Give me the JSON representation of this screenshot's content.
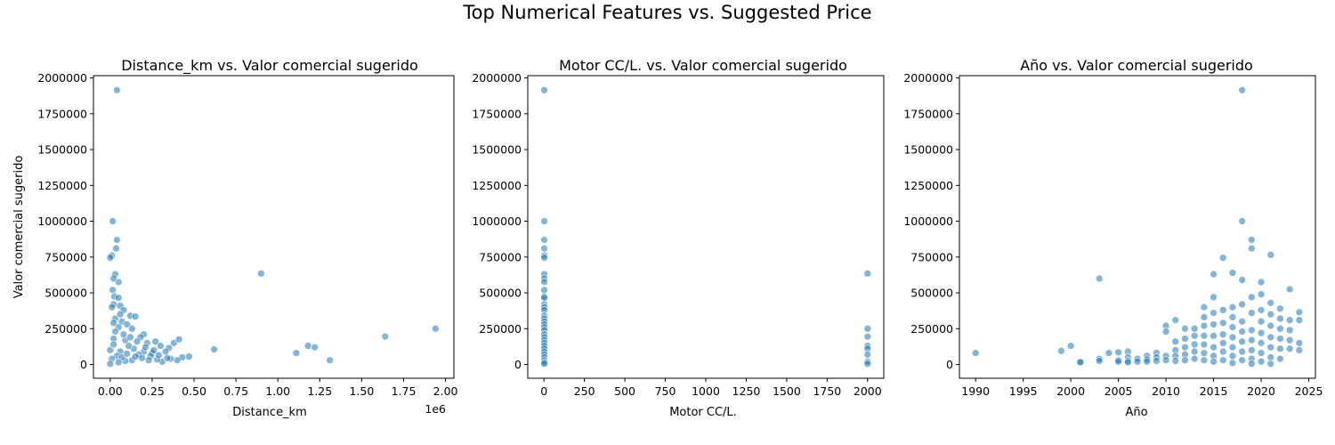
{
  "figure": {
    "title": "Top Numerical Features vs. Suggested Price"
  },
  "colors": {
    "marker": "#1f77b4",
    "marker_edge": "#ffffff"
  },
  "chart_data": [
    {
      "type": "scatter",
      "title": "Distance_km vs. Valor comercial sugerido",
      "xlabel": "Distance_km",
      "ylabel": "Valor comercial sugerido",
      "x_offset_text": "1e6",
      "xlim": [
        -0.1,
        2.05
      ],
      "ylim": [
        -96000,
        2016000
      ],
      "xticks": [
        0.0,
        0.25,
        0.5,
        0.75,
        1.0,
        1.25,
        1.5,
        1.75,
        2.0
      ],
      "xtick_labels": [
        "0.00",
        "0.25",
        "0.50",
        "0.75",
        "1.00",
        "1.25",
        "1.50",
        "1.75",
        "2.00"
      ],
      "yticks": [
        0,
        250000,
        500000,
        750000,
        1000000,
        1250000,
        1500000,
        1750000,
        2000000
      ],
      "ytick_labels": [
        "0",
        "250000",
        "500000",
        "750000",
        "1000000",
        "1250000",
        "1500000",
        "1750000",
        "2000000"
      ],
      "grid": false,
      "points": [
        [
          0.04,
          1915000
        ],
        [
          0.015,
          1000000
        ],
        [
          0.04,
          870000
        ],
        [
          0.035,
          810000
        ],
        [
          0.01,
          760000
        ],
        [
          0.0,
          745000
        ],
        [
          0.05,
          575000
        ],
        [
          0.03,
          630000
        ],
        [
          0.02,
          600000
        ],
        [
          0.015,
          520000
        ],
        [
          0.025,
          475000
        ],
        [
          0.05,
          465000
        ],
        [
          0.02,
          420000
        ],
        [
          0.06,
          410000
        ],
        [
          0.01,
          400000
        ],
        [
          0.08,
          380000
        ],
        [
          0.12,
          340000
        ],
        [
          0.15,
          335000
        ],
        [
          0.03,
          320000
        ],
        [
          0.07,
          300000
        ],
        [
          0.1,
          280000
        ],
        [
          0.05,
          260000
        ],
        [
          0.13,
          250000
        ],
        [
          0.2,
          210000
        ],
        [
          0.18,
          190000
        ],
        [
          0.02,
          180000
        ],
        [
          0.09,
          170000
        ],
        [
          0.16,
          160000
        ],
        [
          0.22,
          150000
        ],
        [
          0.27,
          160000
        ],
        [
          0.3,
          130000
        ],
        [
          0.35,
          115000
        ],
        [
          0.38,
          150000
        ],
        [
          0.41,
          175000
        ],
        [
          0.33,
          90000
        ],
        [
          0.25,
          80000
        ],
        [
          0.43,
          50000
        ],
        [
          0.47,
          55000
        ],
        [
          0.4,
          30000
        ],
        [
          0.36,
          40000
        ],
        [
          0.31,
          20000
        ],
        [
          0.28,
          35000
        ],
        [
          0.24,
          60000
        ],
        [
          0.2,
          90000
        ],
        [
          0.14,
          110000
        ],
        [
          0.11,
          130000
        ],
        [
          0.06,
          90000
        ],
        [
          0.04,
          60000
        ],
        [
          0.01,
          40000
        ],
        [
          0.0,
          100000
        ],
        [
          0.02,
          140000
        ],
        [
          0.08,
          210000
        ],
        [
          0.17,
          70000
        ],
        [
          0.19,
          45000
        ],
        [
          0.13,
          30000
        ],
        [
          0.09,
          25000
        ],
        [
          0.07,
          50000
        ],
        [
          0.05,
          15000
        ],
        [
          0.0,
          5000
        ],
        [
          0.03,
          230000
        ],
        [
          0.06,
          350000
        ],
        [
          0.02,
          290000
        ],
        [
          0.12,
          190000
        ],
        [
          0.26,
          100000
        ],
        [
          0.21,
          120000
        ],
        [
          0.15,
          55000
        ],
        [
          0.1,
          75000
        ],
        [
          0.23,
          30000
        ],
        [
          0.29,
          65000
        ],
        [
          0.34,
          45000
        ],
        [
          0.62,
          105000
        ],
        [
          0.9,
          635000
        ],
        [
          1.11,
          80000
        ],
        [
          1.18,
          130000
        ],
        [
          1.22,
          120000
        ],
        [
          1.31,
          30000
        ],
        [
          1.64,
          195000
        ],
        [
          1.94,
          250000
        ]
      ]
    },
    {
      "type": "scatter",
      "title": "Motor CC/L. vs. Valor comercial sugerido",
      "xlabel": "Motor CC/L.",
      "ylabel": "",
      "xlim": [
        -100,
        2100
      ],
      "ylim": [
        -96000,
        2016000
      ],
      "xticks": [
        0,
        250,
        500,
        750,
        1000,
        1250,
        1500,
        1750,
        2000
      ],
      "xtick_labels": [
        "0",
        "250",
        "500",
        "750",
        "1000",
        "1250",
        "1500",
        "1750",
        "2000"
      ],
      "yticks": [
        0,
        250000,
        500000,
        750000,
        1000000,
        1250000,
        1500000,
        1750000,
        2000000
      ],
      "ytick_labels": [
        "0",
        "250000",
        "500000",
        "750000",
        "1000000",
        "1250000",
        "1500000",
        "1750000",
        "2000000"
      ],
      "grid": false,
      "points": [
        [
          2,
          1915000
        ],
        [
          2,
          1000000
        ],
        [
          2,
          870000
        ],
        [
          2,
          810000
        ],
        [
          2,
          760000
        ],
        [
          2,
          745000
        ],
        [
          2,
          630000
        ],
        [
          2,
          600000
        ],
        [
          2,
          575000
        ],
        [
          2,
          520000
        ],
        [
          2,
          475000
        ],
        [
          2,
          465000
        ],
        [
          2,
          420000
        ],
        [
          2,
          400000
        ],
        [
          2,
          380000
        ],
        [
          2,
          340000
        ],
        [
          2,
          320000
        ],
        [
          2,
          300000
        ],
        [
          2,
          280000
        ],
        [
          2,
          260000
        ],
        [
          2,
          240000
        ],
        [
          2,
          210000
        ],
        [
          2,
          190000
        ],
        [
          2,
          170000
        ],
        [
          2,
          150000
        ],
        [
          2,
          130000
        ],
        [
          2,
          110000
        ],
        [
          2,
          90000
        ],
        [
          2,
          70000
        ],
        [
          2,
          50000
        ],
        [
          2,
          30000
        ],
        [
          2,
          15000
        ],
        [
          2,
          5000
        ],
        [
          2000,
          635000
        ],
        [
          2000,
          250000
        ],
        [
          2000,
          195000
        ],
        [
          2000,
          130000
        ],
        [
          2000,
          110000
        ],
        [
          2000,
          70000
        ],
        [
          2000,
          20000
        ],
        [
          2000,
          5000
        ]
      ]
    },
    {
      "type": "scatter",
      "title": "Año vs. Valor comercial sugerido",
      "xlabel": "Año",
      "ylabel": "",
      "xlim": [
        1988.3,
        2025.7
      ],
      "ylim": [
        -96000,
        2016000
      ],
      "xticks": [
        1990,
        1995,
        2000,
        2005,
        2010,
        2015,
        2020,
        2025
      ],
      "xtick_labels": [
        "1990",
        "1995",
        "2000",
        "2005",
        "2010",
        "2015",
        "2020",
        "2025"
      ],
      "yticks": [
        0,
        250000,
        500000,
        750000,
        1000000,
        1250000,
        1500000,
        1750000,
        2000000
      ],
      "ytick_labels": [
        "0",
        "250000",
        "500000",
        "750000",
        "1000000",
        "1250000",
        "1500000",
        "1750000",
        "2000000"
      ],
      "grid": false,
      "points": [
        [
          1990,
          80000
        ],
        [
          1999,
          95000
        ],
        [
          2000,
          130000
        ],
        [
          2001,
          20000
        ],
        [
          2001,
          15000
        ],
        [
          2003,
          600000
        ],
        [
          2003,
          40000
        ],
        [
          2003,
          25000
        ],
        [
          2004,
          80000
        ],
        [
          2005,
          85000
        ],
        [
          2005,
          30000
        ],
        [
          2005,
          20000
        ],
        [
          2006,
          90000
        ],
        [
          2006,
          50000
        ],
        [
          2006,
          25000
        ],
        [
          2006,
          15000
        ],
        [
          2007,
          40000
        ],
        [
          2007,
          20000
        ],
        [
          2008,
          60000
        ],
        [
          2008,
          35000
        ],
        [
          2008,
          20000
        ],
        [
          2009,
          80000
        ],
        [
          2009,
          50000
        ],
        [
          2009,
          25000
        ],
        [
          2010,
          270000
        ],
        [
          2010,
          230000
        ],
        [
          2010,
          60000
        ],
        [
          2010,
          30000
        ],
        [
          2011,
          310000
        ],
        [
          2011,
          160000
        ],
        [
          2011,
          100000
        ],
        [
          2011,
          60000
        ],
        [
          2011,
          25000
        ],
        [
          2012,
          250000
        ],
        [
          2012,
          180000
        ],
        [
          2012,
          120000
        ],
        [
          2012,
          70000
        ],
        [
          2012,
          30000
        ],
        [
          2013,
          250000
        ],
        [
          2013,
          200000
        ],
        [
          2013,
          140000
        ],
        [
          2013,
          90000
        ],
        [
          2013,
          40000
        ],
        [
          2014,
          400000
        ],
        [
          2014,
          330000
        ],
        [
          2014,
          270000
        ],
        [
          2014,
          200000
        ],
        [
          2014,
          140000
        ],
        [
          2014,
          80000
        ],
        [
          2014,
          30000
        ],
        [
          2015,
          630000
        ],
        [
          2015,
          470000
        ],
        [
          2015,
          360000
        ],
        [
          2015,
          280000
        ],
        [
          2015,
          200000
        ],
        [
          2015,
          120000
        ],
        [
          2015,
          60000
        ],
        [
          2015,
          20000
        ],
        [
          2016,
          745000
        ],
        [
          2016,
          380000
        ],
        [
          2016,
          290000
        ],
        [
          2016,
          210000
        ],
        [
          2016,
          150000
        ],
        [
          2016,
          90000
        ],
        [
          2016,
          30000
        ],
        [
          2017,
          640000
        ],
        [
          2017,
          400000
        ],
        [
          2017,
          330000
        ],
        [
          2017,
          260000
        ],
        [
          2017,
          190000
        ],
        [
          2017,
          120000
        ],
        [
          2017,
          60000
        ],
        [
          2017,
          10000
        ],
        [
          2018,
          1915000
        ],
        [
          2018,
          1000000
        ],
        [
          2018,
          590000
        ],
        [
          2018,
          420000
        ],
        [
          2018,
          300000
        ],
        [
          2018,
          230000
        ],
        [
          2018,
          160000
        ],
        [
          2018,
          90000
        ],
        [
          2018,
          30000
        ],
        [
          2019,
          870000
        ],
        [
          2019,
          810000
        ],
        [
          2019,
          470000
        ],
        [
          2019,
          360000
        ],
        [
          2019,
          240000
        ],
        [
          2019,
          170000
        ],
        [
          2019,
          100000
        ],
        [
          2019,
          40000
        ],
        [
          2019,
          5000
        ],
        [
          2020,
          575000
        ],
        [
          2020,
          490000
        ],
        [
          2020,
          380000
        ],
        [
          2020,
          300000
        ],
        [
          2020,
          220000
        ],
        [
          2020,
          150000
        ],
        [
          2020,
          80000
        ],
        [
          2020,
          20000
        ],
        [
          2021,
          765000
        ],
        [
          2021,
          430000
        ],
        [
          2021,
          350000
        ],
        [
          2021,
          270000
        ],
        [
          2021,
          190000
        ],
        [
          2021,
          120000
        ],
        [
          2021,
          50000
        ],
        [
          2021,
          5000
        ],
        [
          2022,
          390000
        ],
        [
          2022,
          320000
        ],
        [
          2022,
          250000
        ],
        [
          2022,
          180000
        ],
        [
          2022,
          110000
        ],
        [
          2022,
          40000
        ],
        [
          2023,
          525000
        ],
        [
          2023,
          310000
        ],
        [
          2023,
          240000
        ],
        [
          2023,
          170000
        ],
        [
          2023,
          110000
        ],
        [
          2024,
          365000
        ],
        [
          2024,
          310000
        ],
        [
          2024,
          150000
        ],
        [
          2024,
          100000
        ]
      ]
    }
  ]
}
